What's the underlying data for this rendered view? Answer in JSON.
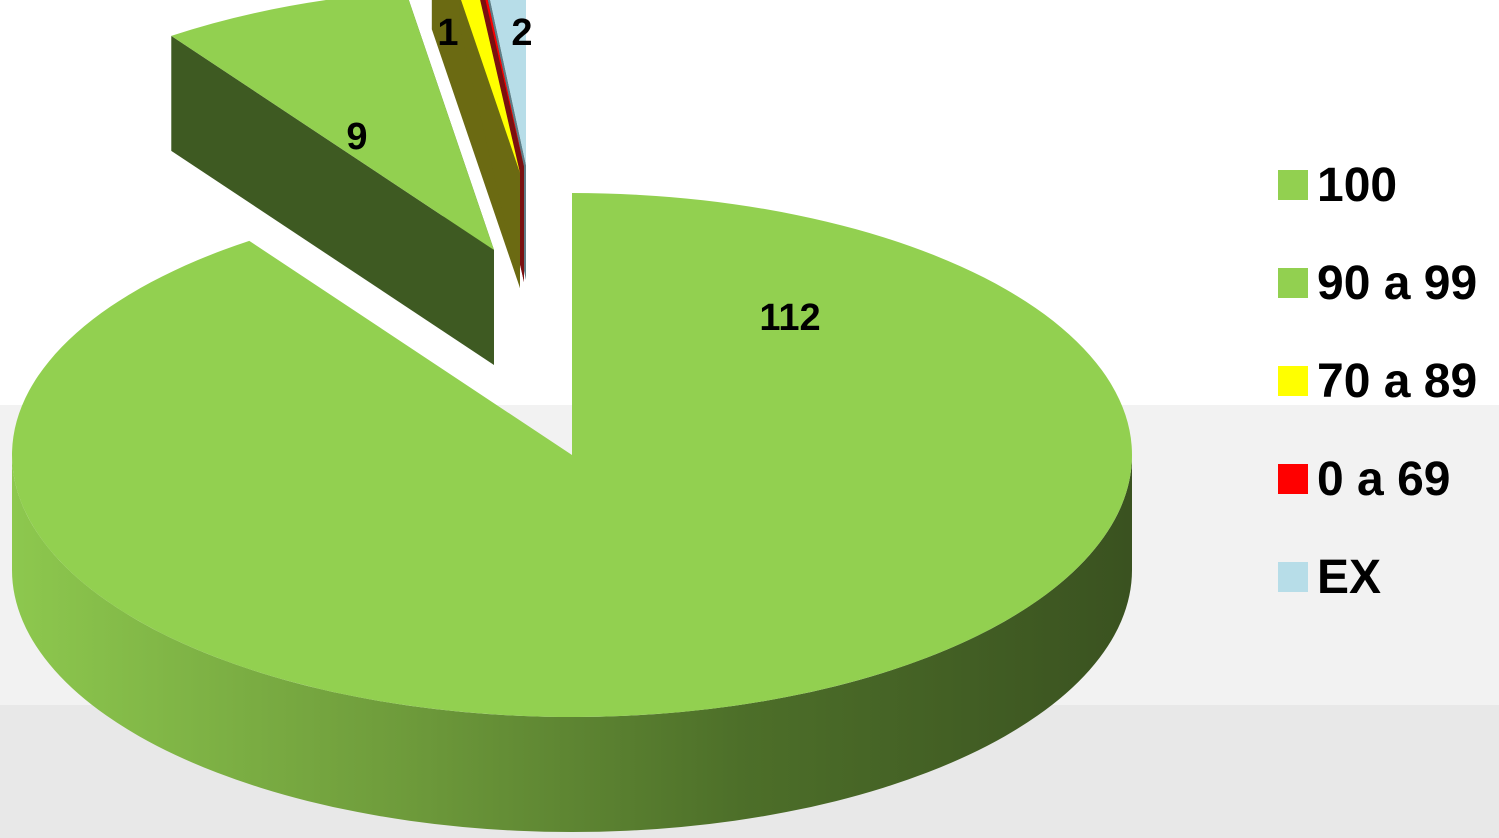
{
  "chart_data": {
    "type": "pie",
    "title": "",
    "categories": [
      "100",
      "90 a 99",
      "70 a 89",
      "0 a 69",
      "EX"
    ],
    "values": [
      112,
      9,
      1,
      0,
      2
    ],
    "data_labels": [
      "112",
      "9",
      "1",
      "",
      "2"
    ],
    "colors": [
      "#92d050",
      "#92d050",
      "#ffff00",
      "#ff0000",
      "#b7dde8"
    ],
    "exploded": [
      false,
      true,
      true,
      true,
      true
    ],
    "three_d": true,
    "legend": {
      "position": "right",
      "items": [
        {
          "label": "100",
          "color": "#92d050"
        },
        {
          "label": "90 a 99",
          "color": "#92d050"
        },
        {
          "label": "70 a 89",
          "color": "#ffff00"
        },
        {
          "label": "0 a 69",
          "color": "#ff0000"
        },
        {
          "label": "EX",
          "color": "#b7dde8"
        }
      ]
    }
  }
}
